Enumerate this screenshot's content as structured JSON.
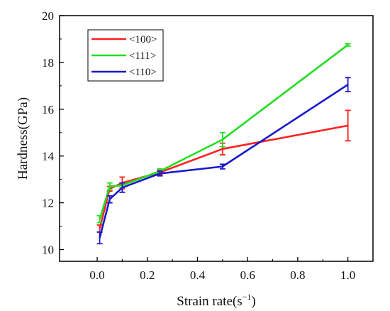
{
  "chart_data": {
    "type": "line",
    "title": "",
    "xlabel_main": "Strain rate(s",
    "xlabel_sup": "−1",
    "xlabel_close": ")",
    "ylabel": "Hardness(GPa)",
    "xlim": [
      -0.15,
      1.1
    ],
    "ylim": [
      9.5,
      20
    ],
    "x_ticks": [
      0.0,
      0.2,
      0.4,
      0.6,
      0.8,
      1.0
    ],
    "x_tick_labels": [
      "0.0",
      "0.2",
      "0.4",
      "0.6",
      "0.8",
      "1.0"
    ],
    "y_ticks": [
      10,
      12,
      14,
      16,
      18,
      20
    ],
    "y_tick_labels": [
      "10",
      "12",
      "14",
      "16",
      "18",
      "20"
    ],
    "legend_position": "top-left",
    "grid": false,
    "x": [
      0.01,
      0.05,
      0.1,
      0.25,
      0.5,
      1.0
    ],
    "series": [
      {
        "name": "<100>",
        "color": "#ff2020",
        "values": [
          10.9,
          12.6,
          12.85,
          13.3,
          14.3,
          15.3
        ],
        "errors": [
          0.15,
          0.1,
          0.25,
          0.1,
          0.25,
          0.65
        ]
      },
      {
        "name": "<111>",
        "color": "#22dd22",
        "values": [
          11.3,
          12.7,
          12.75,
          13.35,
          14.7,
          18.75
        ],
        "errors": [
          0.15,
          0.15,
          0.1,
          0.1,
          0.3,
          0.05
        ]
      },
      {
        "name": "<110>",
        "color": "#1a1ac8",
        "values": [
          10.5,
          12.15,
          12.65,
          13.25,
          13.55,
          17.05
        ],
        "errors": [
          0.25,
          0.15,
          0.2,
          0.1,
          0.1,
          0.3
        ]
      }
    ]
  }
}
